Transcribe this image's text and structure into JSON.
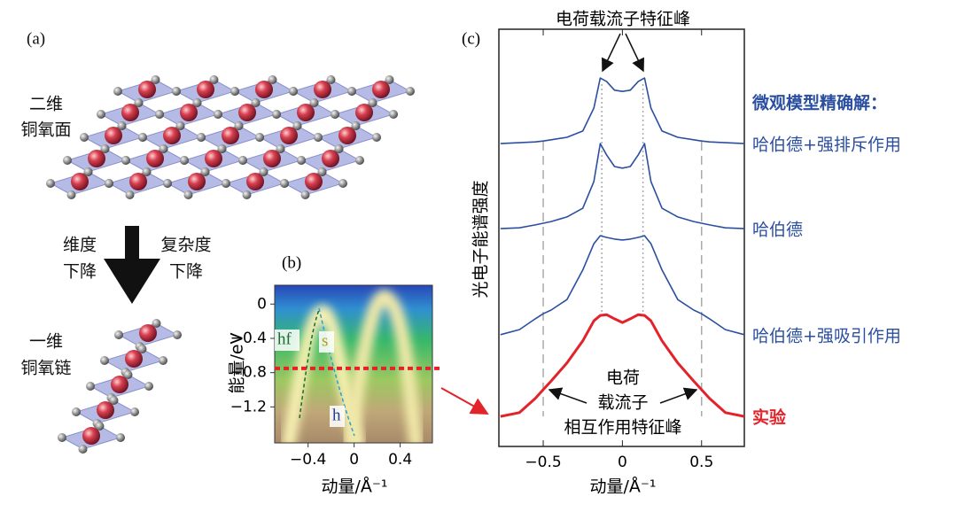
{
  "panel_a": {
    "label": "(a)",
    "plane_lines": [
      "二维",
      "铜氧面"
    ],
    "left_lines": [
      "维度",
      "下降"
    ],
    "right_lines": [
      "复杂度",
      "下降"
    ],
    "chain_lines": [
      "一维",
      "铜氧链"
    ]
  },
  "chart_data": [
    {
      "type": "heatmap",
      "label": "(b)",
      "xlabel": "动量/Å⁻¹",
      "ylabel": "能量/eV",
      "xlim": [
        -0.69,
        0.68
      ],
      "ylim": [
        -1.62,
        0.22
      ],
      "xticks": [
        {
          "value": -0.4,
          "label": "−0.4"
        },
        0,
        0.4
      ],
      "yticks": [
        0,
        {
          "value": -0.4,
          "label": "−0.4"
        },
        {
          "value": -0.8,
          "label": "−0.8"
        },
        {
          "value": -1.2,
          "label": "−1.2"
        }
      ],
      "cut_energy": -0.75,
      "cut_color": "#e3232a",
      "annotations": [
        {
          "text": "hf",
          "color": "#1e6b2e"
        },
        {
          "text": "s",
          "color": "#b59a10"
        },
        {
          "text": "h",
          "color": "#1f3f9a"
        }
      ]
    },
    {
      "type": "line",
      "label": "(c)",
      "title": "电荷载流子特征峰",
      "legend_title": "微观模型精确解：",
      "xlabel": "动量/Å⁻¹",
      "ylabel": "光电子能谱强度",
      "xlim": [
        -0.78,
        0.77
      ],
      "ylim": [
        0,
        10
      ],
      "xticks": [
        {
          "value": -0.5,
          "label": "−0.5"
        },
        0,
        0.5
      ],
      "peak_lines": [
        -0.13,
        0.13
      ],
      "shoulder_lines": [
        -0.5,
        0.5
      ],
      "annotation_lines": [
        "电荷",
        "载流子",
        "相互作用特征峰"
      ],
      "x": [
        -0.77,
        -0.65,
        -0.55,
        -0.5,
        -0.45,
        -0.35,
        -0.25,
        -0.18,
        -0.14,
        -0.1,
        -0.05,
        0,
        0.05,
        0.1,
        0.14,
        0.18,
        0.25,
        0.35,
        0.45,
        0.5,
        0.55,
        0.65,
        0.77
      ],
      "series": [
        {
          "name": "哈伯德+强排斥作用",
          "color": "#2b4fa0",
          "values": [
            7.26,
            7.28,
            7.3,
            7.32,
            7.35,
            7.41,
            7.56,
            8.11,
            8.83,
            8.75,
            8.54,
            8.51,
            8.54,
            8.75,
            8.83,
            8.11,
            7.56,
            7.41,
            7.35,
            7.32,
            7.3,
            7.28,
            7.26
          ]
        },
        {
          "name": "哈伯德",
          "color": "#2b4fa0",
          "values": [
            5.22,
            5.24,
            5.31,
            5.35,
            5.39,
            5.5,
            5.71,
            6.35,
            7.26,
            6.99,
            6.71,
            6.67,
            6.71,
            6.99,
            7.26,
            6.35,
            5.71,
            5.5,
            5.39,
            5.35,
            5.31,
            5.24,
            5.22
          ]
        },
        {
          "name": "哈伯德+强吸引作用",
          "color": "#2b4fa0",
          "values": [
            2.68,
            2.8,
            3.06,
            3.18,
            3.27,
            3.52,
            4.23,
            4.86,
            5.05,
            5.01,
            4.97,
            4.95,
            4.97,
            5.01,
            5.05,
            4.86,
            4.23,
            3.52,
            3.27,
            3.18,
            3.06,
            2.8,
            2.68
          ]
        },
        {
          "name": "实验",
          "color": "#e3232a",
          "values": [
            0.72,
            0.81,
            1.15,
            1.36,
            1.57,
            2.0,
            2.53,
            3.01,
            3.14,
            3.16,
            3.06,
            2.97,
            3.06,
            3.16,
            3.14,
            3.01,
            2.53,
            2.0,
            1.57,
            1.36,
            1.15,
            0.81,
            0.72
          ]
        }
      ]
    }
  ]
}
